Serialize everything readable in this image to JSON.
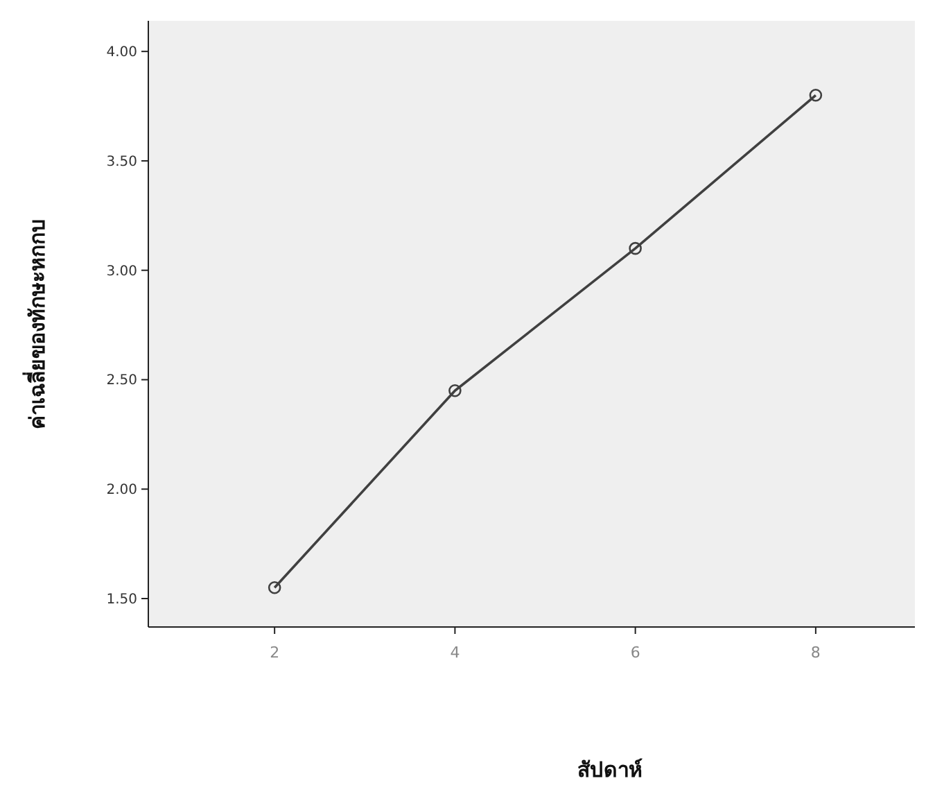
{
  "chart_data": {
    "type": "line",
    "xlabel": "สัปดาห์",
    "ylabel": "ค่าเฉลี่ยของทักษะหกกบ",
    "x": [
      2,
      4,
      6,
      8
    ],
    "series": [
      {
        "color": "#404040",
        "values": [
          1.55,
          2.45,
          3.1,
          3.8
        ]
      }
    ],
    "marker": "circle",
    "line_style": "solid",
    "grid": false,
    "xlim": [
      0.6,
      9.1
    ],
    "xticks": [
      2,
      4,
      6,
      8
    ],
    "ylim": [
      1.37,
      4.14
    ],
    "yticks": [
      {
        "value": 1.5,
        "label": "1.50"
      },
      {
        "value": 2.0,
        "label": "2.00"
      },
      {
        "value": 2.5,
        "label": "2.50"
      },
      {
        "value": 3.0,
        "label": "3.00"
      },
      {
        "value": 3.5,
        "label": "3.50"
      },
      {
        "value": 4.0,
        "label": "4.00"
      }
    ]
  }
}
